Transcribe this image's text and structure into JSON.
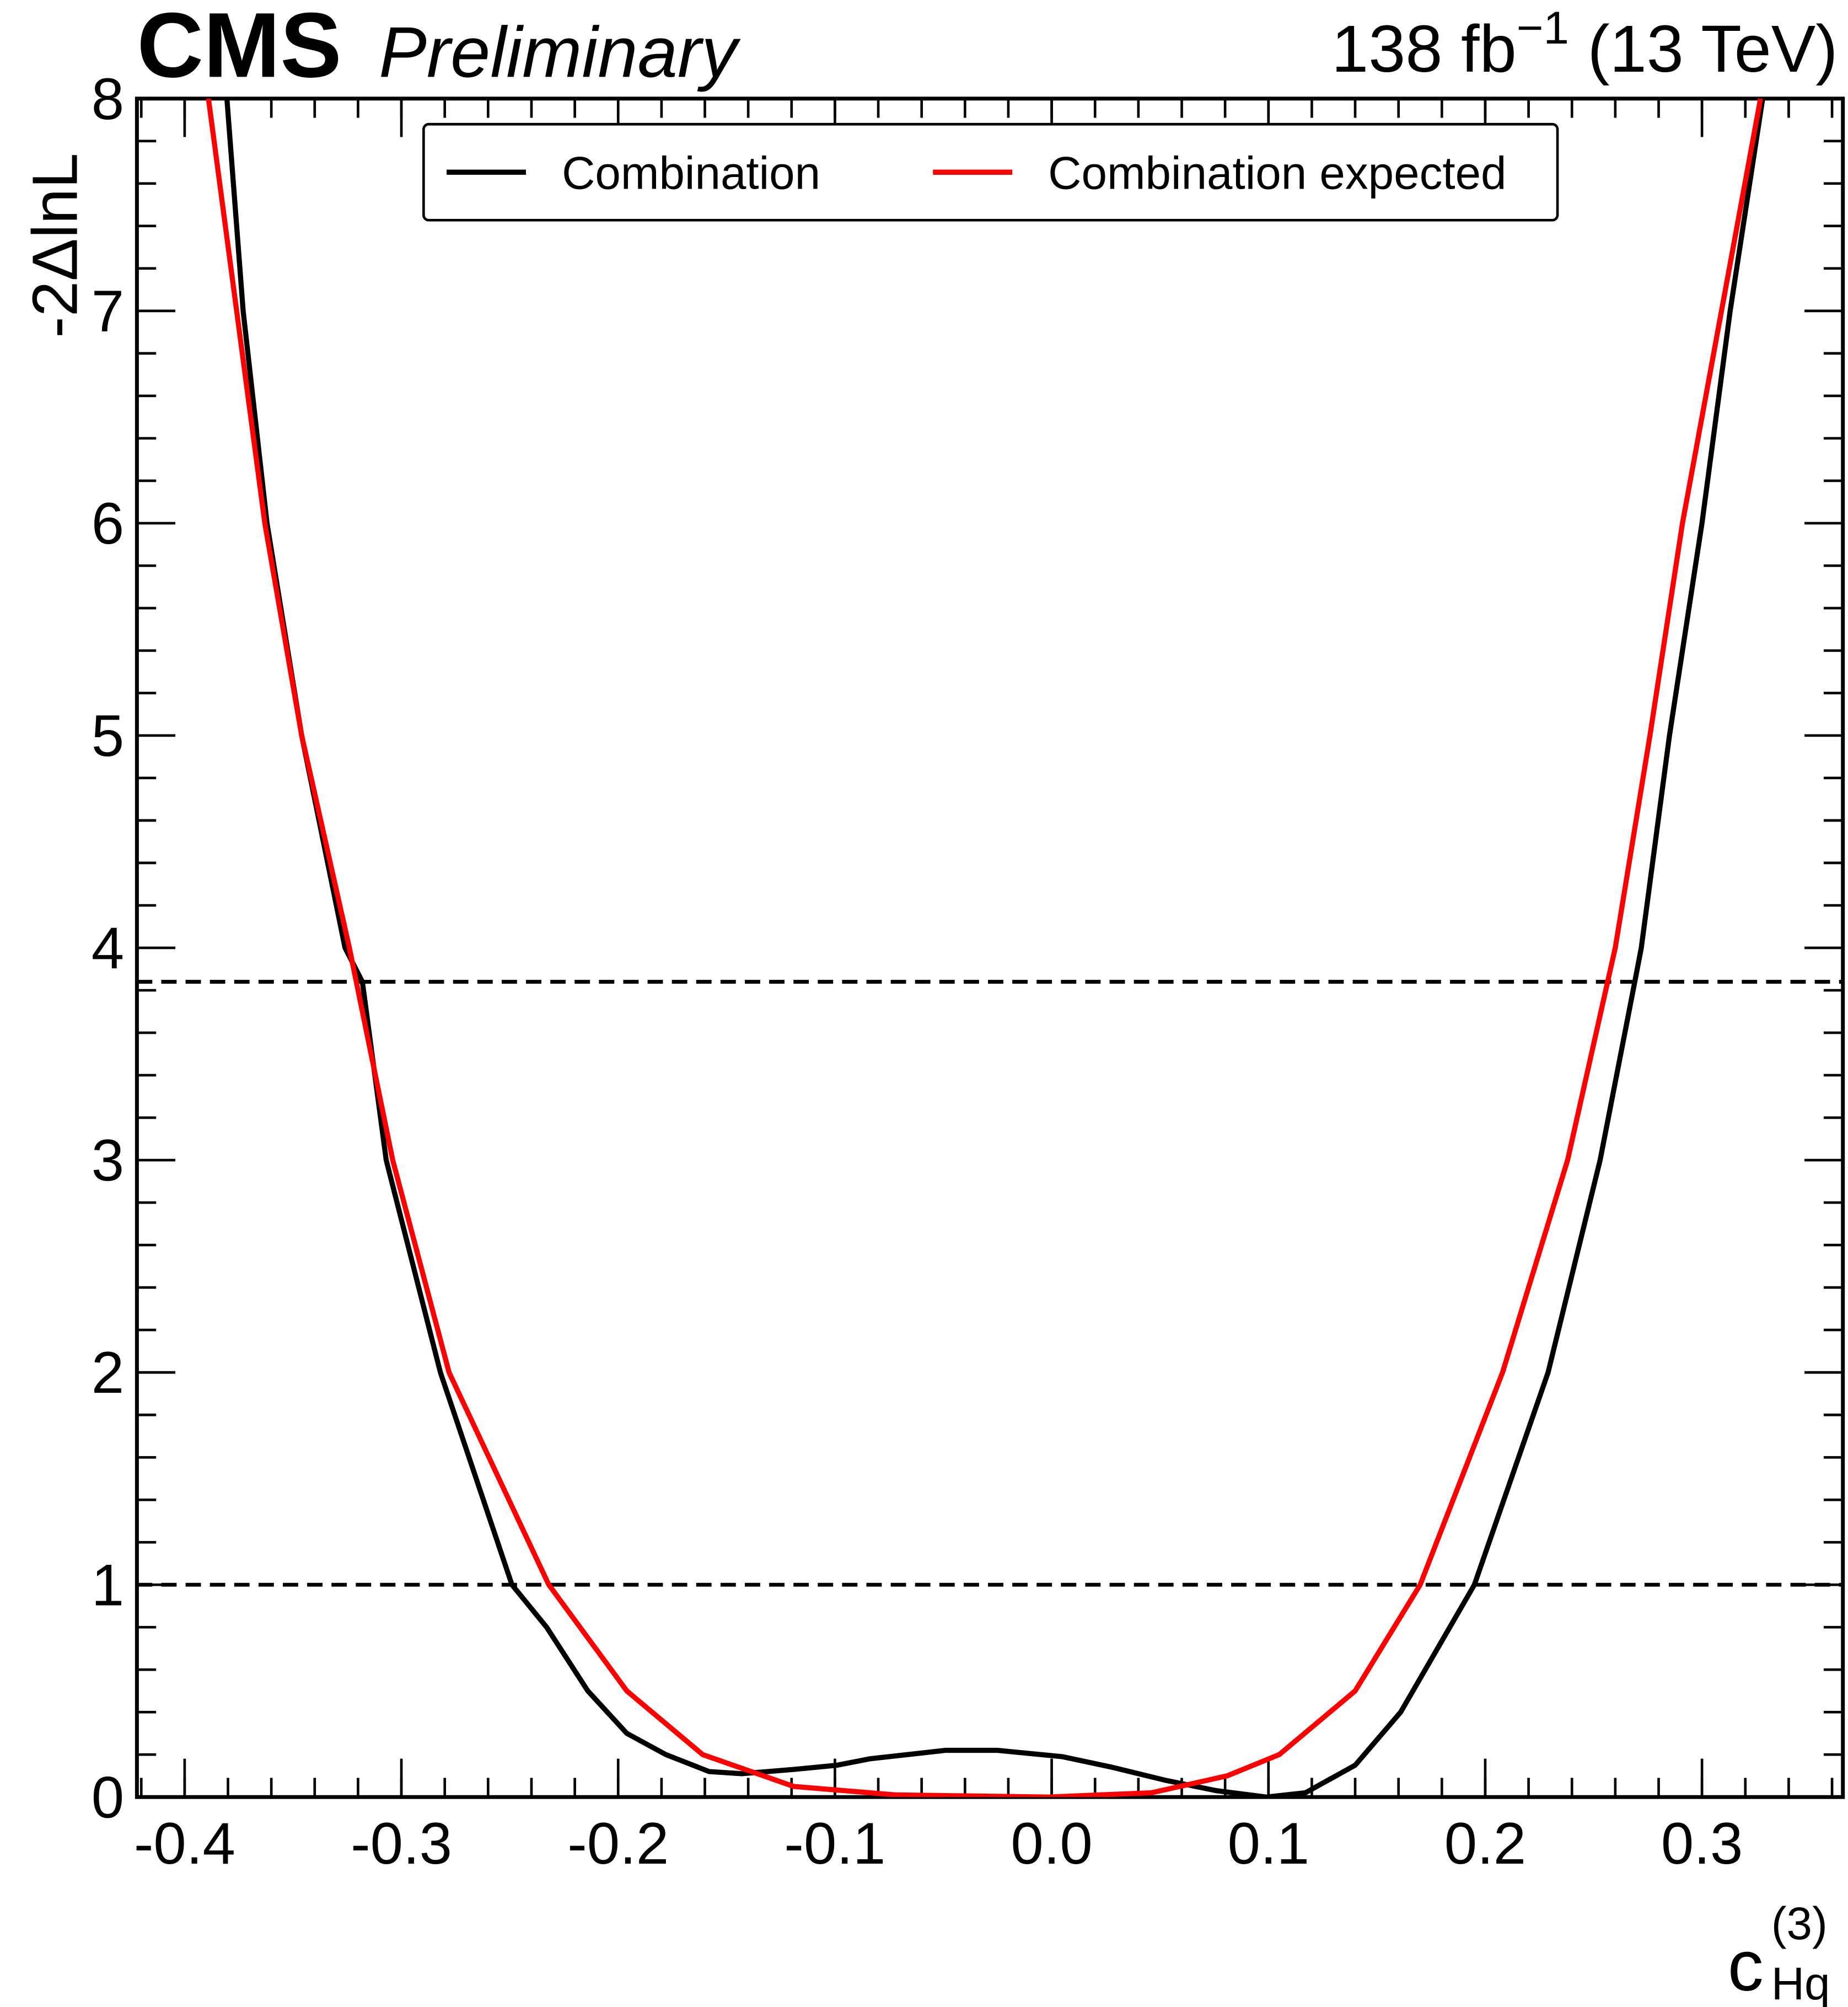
{
  "chart_data": {
    "type": "line",
    "cms_label": "CMS",
    "status_label": "Preliminary",
    "lumi_text": [
      "138 fb",
      "−1",
      " (13 TeV)"
    ],
    "xlabel": [
      "c",
      "(3)",
      "Hq"
    ],
    "ylabel": "-2ΔlnL",
    "xlim": [
      -0.422,
      0.365
    ],
    "ylim": [
      0,
      8
    ],
    "xticks": [
      -0.4,
      -0.3,
      -0.2,
      -0.1,
      {
        "value": 0,
        "label": "0.0"
      },
      0.1,
      0.2,
      0.3
    ],
    "yticks": [
      0,
      1,
      2,
      3,
      4,
      5,
      6,
      7,
      8
    ],
    "reference_lines": [
      1,
      3.84
    ],
    "legend": "top",
    "series": [
      {
        "name": "Combination",
        "color": "#000000",
        "x": [
          -0.3805,
          -0.373,
          -0.362,
          -0.346,
          -0.326,
          -0.318,
          -0.307,
          -0.282,
          -0.249,
          -0.233,
          -0.214,
          -0.196,
          -0.178,
          -0.158,
          -0.143,
          -0.119,
          -0.099,
          -0.084,
          -0.049,
          -0.025,
          0.005,
          0.028,
          0.052,
          0.076,
          0.099,
          0.117,
          0.14,
          0.161,
          0.195,
          0.229,
          0.253,
          0.269,
          0.272,
          0.285,
          0.3,
          0.313,
          0.328
        ],
        "values": [
          8,
          7,
          6,
          5,
          4,
          3.84,
          3,
          2,
          1,
          0.8,
          0.5,
          0.3,
          0.2,
          0.12,
          0.11,
          0.13,
          0.15,
          0.18,
          0.22,
          0.22,
          0.19,
          0.14,
          0.08,
          0.03,
          0,
          0.02,
          0.15,
          0.4,
          1,
          2,
          3,
          3.84,
          4,
          5,
          6,
          7,
          8
        ]
      },
      {
        "name": "Combination expected",
        "color": "#ff0000",
        "x": [
          -0.389,
          -0.376,
          -0.363,
          -0.346,
          -0.324,
          -0.304,
          -0.278,
          -0.232,
          -0.196,
          -0.161,
          -0.119,
          -0.072,
          -0.001,
          0.046,
          0.081,
          0.105,
          0.14,
          0.17,
          0.208,
          0.238,
          0.26,
          0.276,
          0.291,
          0.309,
          0.327
        ],
        "values": [
          8,
          7,
          6,
          5,
          4,
          3,
          2,
          1,
          0.5,
          0.2,
          0.05,
          0.01,
          0,
          0.02,
          0.1,
          0.2,
          0.5,
          1,
          2,
          3,
          4,
          5,
          6,
          7,
          8
        ]
      }
    ]
  }
}
